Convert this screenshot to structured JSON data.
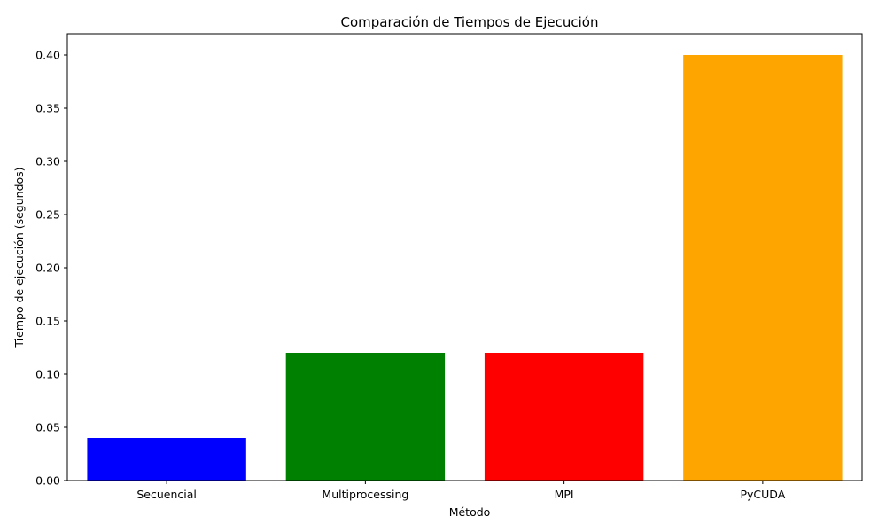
{
  "chart_data": {
    "type": "bar",
    "title": "Comparación de Tiempos de Ejecución",
    "xlabel": "Método",
    "ylabel": "Tiempo de ejecución (segundos)",
    "categories": [
      "Secuencial",
      "Multiprocessing",
      "MPI",
      "PyCUDA"
    ],
    "values": [
      0.04,
      0.12,
      0.12,
      0.4
    ],
    "colors": [
      "#0000ff",
      "#008000",
      "#ff0000",
      "#ffa500"
    ],
    "ylim": [
      0,
      0.42
    ],
    "yticks": [
      "0.00",
      "0.05",
      "0.10",
      "0.15",
      "0.20",
      "0.25",
      "0.30",
      "0.35",
      "0.40"
    ],
    "grid": false,
    "legend": "none"
  }
}
